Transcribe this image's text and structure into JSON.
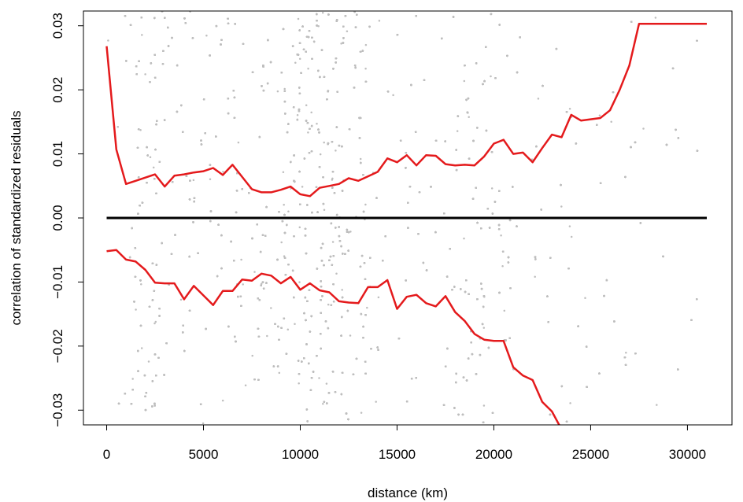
{
  "chart_data": {
    "type": "scatter",
    "title": "",
    "xlabel": "distance (km)",
    "ylabel": "correlation of standardized residuals",
    "xlim": [
      -1200,
      32300
    ],
    "ylim": [
      -0.0323,
      0.0323
    ],
    "x_ticks": [
      0,
      5000,
      10000,
      15000,
      20000,
      25000,
      30000
    ],
    "x_tick_labels": [
      "0",
      "5000",
      "10000",
      "15000",
      "20000",
      "25000",
      "30000"
    ],
    "y_ticks": [
      -0.03,
      -0.02,
      -0.01,
      0.0,
      0.01,
      0.02,
      0.03
    ],
    "y_tick_labels": [
      "−0.03",
      "−0.02",
      "−0.01",
      "0.00",
      "0.01",
      "0.02",
      "0.03"
    ],
    "grid": false,
    "legend": "none",
    "colors": {
      "points": "#bebebe",
      "envelope": "#e41a1c",
      "zero_line": "#000000"
    },
    "scatter_points": {
      "description_note": "dense gray point cloud of pairwise residual correlations; densest 1000-3500 km and 8000-14000 km, sparser beyond 15000 km, extending to ~31000 km",
      "x_range": [
        0,
        31000
      ],
      "y_range": [
        -0.0323,
        0.0323
      ]
    },
    "series": [
      {
        "name": "upper envelope",
        "x": [
          0,
          500,
          1000,
          1500,
          2000,
          2500,
          3000,
          3500,
          4000,
          4500,
          5000,
          5500,
          6000,
          6500,
          7000,
          7500,
          8000,
          8500,
          9000,
          9500,
          10000,
          10500,
          11000,
          11500,
          12000,
          12500,
          13000,
          13500,
          14000,
          14500,
          15000,
          15500,
          16000,
          16500,
          17000,
          17500,
          18000,
          18500,
          19000,
          19500,
          20000,
          20500,
          21000,
          21500,
          22000,
          22500,
          23000,
          23500,
          24000,
          24500,
          25000,
          25500,
          26000,
          26500,
          27000,
          27500,
          28000,
          28500,
          29000,
          29500,
          30000,
          30500,
          31000
        ],
        "y": [
          0.0268,
          0.0107,
          0.0053,
          0.0058,
          0.0063,
          0.0068,
          0.0049,
          0.0066,
          0.0068,
          0.0071,
          0.0073,
          0.0078,
          0.0067,
          0.0083,
          0.0064,
          0.0045,
          0.004,
          0.004,
          0.0044,
          0.0049,
          0.0037,
          0.0034,
          0.0047,
          0.005,
          0.0053,
          0.0062,
          0.0058,
          0.0065,
          0.0072,
          0.0093,
          0.0087,
          0.0098,
          0.0082,
          0.0098,
          0.0097,
          0.0084,
          0.0082,
          0.0083,
          0.0082,
          0.0096,
          0.0116,
          0.0122,
          0.01,
          0.0102,
          0.0087,
          0.0109,
          0.013,
          0.0126,
          0.0161,
          0.0152,
          0.0154,
          0.0156,
          0.0168,
          0.02,
          0.0238,
          0.0303,
          0.0303,
          0.0303,
          0.0303,
          0.0303,
          0.0303,
          0.0303,
          0.0303
        ]
      },
      {
        "name": "lower envelope",
        "x": [
          0,
          500,
          1000,
          1500,
          2000,
          2500,
          3000,
          3500,
          4000,
          4500,
          5000,
          5500,
          6000,
          6500,
          7000,
          7500,
          8000,
          8500,
          9000,
          9500,
          10000,
          10500,
          11000,
          11500,
          12000,
          12500,
          13000,
          13500,
          14000,
          14500,
          15000,
          15500,
          16000,
          16500,
          17000,
          17500,
          18000,
          18500,
          19000,
          19500,
          20000,
          20500,
          21000,
          21500,
          22000,
          22500,
          23000,
          23500,
          24000,
          24500,
          25000,
          25500,
          26000,
          26500,
          27000,
          27500,
          28000,
          28500,
          29000,
          29500
        ],
        "y": [
          -0.0052,
          -0.005,
          -0.0065,
          -0.0068,
          -0.0081,
          -0.0101,
          -0.0102,
          -0.0102,
          -0.0127,
          -0.0106,
          -0.0121,
          -0.0136,
          -0.0114,
          -0.0114,
          -0.0096,
          -0.0098,
          -0.0087,
          -0.009,
          -0.0102,
          -0.0092,
          -0.0112,
          -0.0102,
          -0.0113,
          -0.0116,
          -0.013,
          -0.0132,
          -0.0133,
          -0.0108,
          -0.0108,
          -0.0097,
          -0.0142,
          -0.0123,
          -0.012,
          -0.0133,
          -0.0138,
          -0.0122,
          -0.0147,
          -0.0161,
          -0.0181,
          -0.019,
          -0.0192,
          -0.0192,
          -0.0233,
          -0.0246,
          -0.0253,
          -0.0287,
          -0.0302,
          -0.033,
          -0.033,
          -0.033,
          -0.033,
          -0.033,
          -0.033,
          -0.033,
          -0.033,
          -0.033,
          -0.033,
          -0.033,
          -0.033,
          -0.033
        ]
      },
      {
        "name": "zero line",
        "x": [
          0,
          31000
        ],
        "y": [
          0,
          0
        ]
      }
    ]
  }
}
